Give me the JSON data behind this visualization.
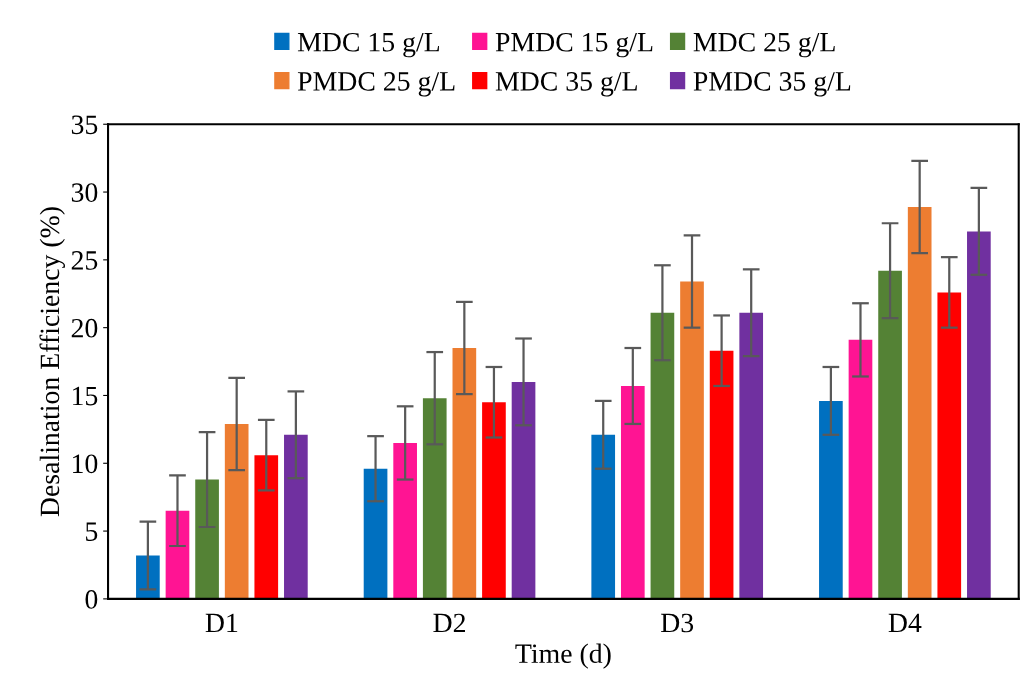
{
  "chart_data": {
    "type": "bar",
    "xlabel": "Time (d)",
    "ylabel": "Desalination Efficiency (%)",
    "categories": [
      "D1",
      "D2",
      "D3",
      "D4"
    ],
    "ylim": [
      0,
      35
    ],
    "yticks": [
      0,
      5,
      10,
      15,
      20,
      25,
      30,
      35
    ],
    "grid": false,
    "legend": "top",
    "series": [
      {
        "name": "MDC 15 g/L",
        "color": "#0070c0",
        "values": [
          3.2,
          9.6,
          12.1,
          14.6
        ],
        "errors": [
          2.5,
          2.4,
          2.5,
          2.5
        ]
      },
      {
        "name": "PMDC 15 g/L",
        "color": "#ff1493",
        "values": [
          6.5,
          11.5,
          15.7,
          19.1
        ],
        "errors": [
          2.6,
          2.7,
          2.8,
          2.7
        ]
      },
      {
        "name": "MDC 25 g/L",
        "color": "#548235",
        "values": [
          8.8,
          14.8,
          21.1,
          24.2
        ],
        "errors": [
          3.5,
          3.4,
          3.5,
          3.5
        ]
      },
      {
        "name": "PMDC 25 g/L",
        "color": "#ed7d31",
        "values": [
          12.9,
          18.5,
          23.4,
          28.9
        ],
        "errors": [
          3.4,
          3.4,
          3.4,
          3.4
        ]
      },
      {
        "name": "MDC 35 g/L",
        "color": "#ff0000",
        "values": [
          10.6,
          14.5,
          18.3,
          22.6
        ],
        "errors": [
          2.6,
          2.6,
          2.6,
          2.6
        ]
      },
      {
        "name": "PMDC 35 g/L",
        "color": "#7030a0",
        "values": [
          12.1,
          16.0,
          21.1,
          27.1
        ],
        "errors": [
          3.2,
          3.2,
          3.2,
          3.2
        ]
      }
    ]
  }
}
